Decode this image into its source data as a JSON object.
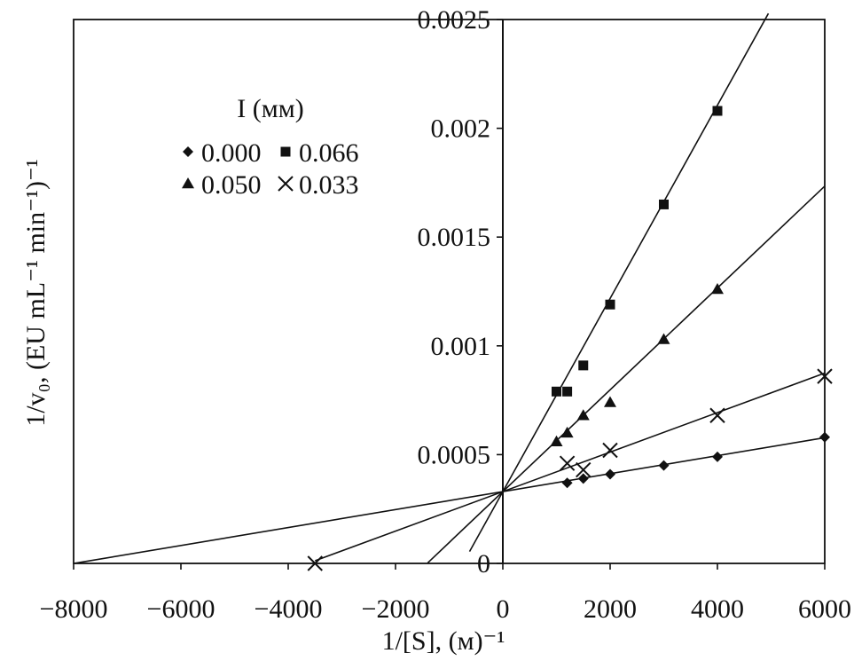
{
  "chart_data": {
    "type": "scatter",
    "x_label": "1/[S], (м)⁻¹",
    "y_label": "1/v₀, (EU mL⁻¹ min⁻¹)⁻¹",
    "xlim": [
      -8000,
      6000
    ],
    "ylim": [
      0,
      0.0025
    ],
    "x_ticks": [
      -8000,
      -6000,
      -4000,
      -2000,
      0,
      2000,
      4000,
      6000
    ],
    "x_tick_labels": [
      "−8000",
      "−6000",
      "−4000",
      "−2000",
      "0",
      "2000",
      "4000",
      "6000"
    ],
    "y_ticks": [
      0,
      0.0005,
      0.001,
      0.0015,
      0.002,
      0.0025
    ],
    "y_tick_labels": [
      "0",
      "0.0005",
      "0.001",
      "0.0015",
      "0.002",
      "0.0025"
    ],
    "grid": false,
    "legend": {
      "title": "I (мм)",
      "placement": "upper-left",
      "entries": [
        {
          "marker": "diamond",
          "label": "0.000"
        },
        {
          "marker": "square",
          "label": "0.066"
        },
        {
          "marker": "triangle",
          "label": "0.050"
        },
        {
          "marker": "cross",
          "label": "0.033"
        }
      ]
    },
    "series": [
      {
        "name": "0.000",
        "marker": "diamond",
        "x": [
          1200,
          1500,
          2000,
          3000,
          4000,
          6000
        ],
        "y": [
          0.00037,
          0.00039,
          0.00041,
          0.00045,
          0.00049,
          0.00058
        ],
        "fit": {
          "x_start": -8000,
          "x_end": 6000,
          "intercept": 0.00033,
          "slope": 4.13e-08
        }
      },
      {
        "name": "0.066",
        "marker": "square",
        "x": [
          1000,
          1200,
          1500,
          2000,
          3000,
          4000
        ],
        "y": [
          0.00079,
          0.00079,
          0.00091,
          0.00119,
          0.00165,
          0.00208
        ],
        "fit": {
          "x_start": -620,
          "x_end": 4950,
          "intercept": 0.00033,
          "slope": 4.44e-07
        }
      },
      {
        "name": "0.050",
        "marker": "triangle",
        "x": [
          1000,
          1200,
          1500,
          2000,
          3000,
          4000
        ],
        "y": [
          0.00056,
          0.0006,
          0.00068,
          0.00074,
          0.00103,
          0.00126
        ],
        "fit": {
          "x_start": -1400,
          "x_end": 6000,
          "intercept": 0.00033,
          "slope": 2.34e-07
        }
      },
      {
        "name": "0.033",
        "marker": "cross",
        "x": [
          -3500,
          1200,
          1500,
          2000,
          4000,
          6000
        ],
        "y": [
          0,
          0.00046,
          0.00043,
          0.00052,
          0.00068,
          0.00086
        ],
        "fit": {
          "x_start": -3500,
          "x_end": 6000,
          "intercept": 0.00033,
          "slope": 9.08e-08
        }
      }
    ]
  }
}
